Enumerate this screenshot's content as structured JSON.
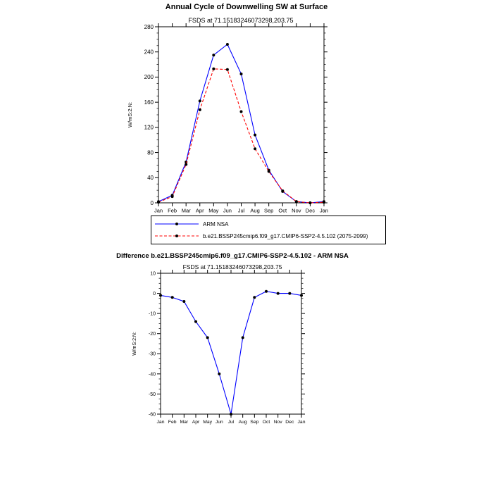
{
  "figure": {
    "background": "#ffffff"
  },
  "chart_data": [
    {
      "type": "line",
      "title": "Annual Cycle of Downwelling SW at Surface",
      "subtitle": "FSDS at 71.15183246073298,203.75",
      "ylabel": "W/mS:2:N:",
      "xlabel": "",
      "categories": [
        "Jan",
        "Feb",
        "Mar",
        "Apr",
        "May",
        "Jun",
        "Jul",
        "Aug",
        "Sep",
        "Oct",
        "Nov",
        "Dec",
        "Jan"
      ],
      "ylim": [
        0,
        280
      ],
      "yticks": [
        0,
        40,
        80,
        120,
        160,
        200,
        240,
        280
      ],
      "grid": false,
      "legend_position": "below-left-box",
      "series": [
        {
          "name": "ARM NSA",
          "color": "#0000ff",
          "line_style": "solid",
          "marker": "filled-circle",
          "marker_color": "#000000",
          "values": [
            2,
            12,
            65,
            162,
            235,
            252,
            205,
            108,
            52,
            18,
            2,
            0,
            2
          ]
        },
        {
          "name": "b.e21.BSSP245cmip6.f09_g17.CMIP6-SSP2-4.5.102 (2075-2099)",
          "color": "#ff0000",
          "line_style": "dashed",
          "marker": "filled-circle",
          "marker_color": "#000000",
          "values": [
            1,
            10,
            61,
            148,
            213,
            212,
            145,
            86,
            50,
            19,
            2,
            0,
            1
          ]
        }
      ]
    },
    {
      "type": "line",
      "title": "Difference b.e21.BSSP245cmip6.f09_g17.CMIP6-SSP2-4.5.102 - ARM NSA",
      "subtitle": "FSDS at 71.15183246073298,203.75",
      "ylabel": "W/mS:2:N:",
      "xlabel": "",
      "categories": [
        "Jan",
        "Feb",
        "Mar",
        "Apr",
        "May",
        "Jun",
        "Jul",
        "Aug",
        "Sep",
        "Oct",
        "Nov",
        "Dec",
        "Jan"
      ],
      "ylim": [
        -60,
        10
      ],
      "yticks": [
        -60,
        -50,
        -40,
        -30,
        -20,
        -10,
        0,
        10
      ],
      "grid": false,
      "legend_position": "none",
      "series": [
        {
          "name": "Difference",
          "color": "#0000ff",
          "line_style": "solid",
          "marker": "filled-circle",
          "marker_color": "#000000",
          "values": [
            -1,
            -2,
            -4,
            -14,
            -22,
            -40,
            -60,
            -22,
            -2,
            1,
            0,
            0,
            -1
          ]
        }
      ]
    }
  ]
}
